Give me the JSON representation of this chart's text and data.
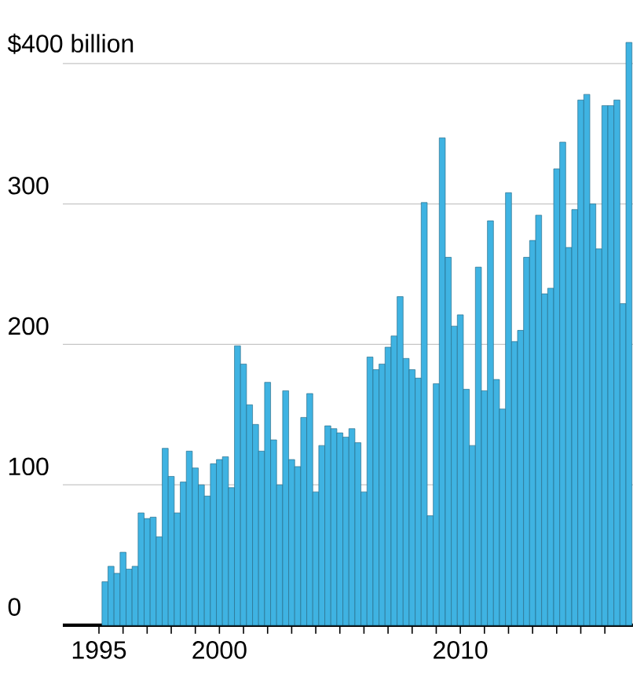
{
  "chart_data": {
    "type": "bar",
    "x": [
      "1995-04",
      "1995-07",
      "1995-10",
      "1996-01",
      "1996-04",
      "1996-07",
      "1996-10",
      "1997-01",
      "1997-04",
      "1997-07",
      "1997-10",
      "1998-01",
      "1998-04",
      "1998-07",
      "1998-10",
      "1999-01",
      "1999-04",
      "1999-07",
      "1999-10",
      "2000-01",
      "2000-04",
      "2000-07",
      "2000-10",
      "2001-01",
      "2001-04",
      "2001-07",
      "2001-10",
      "2002-01",
      "2002-04",
      "2002-07",
      "2002-10",
      "2003-01",
      "2003-04",
      "2003-07",
      "2003-10",
      "2004-01",
      "2004-04",
      "2004-07",
      "2004-10",
      "2005-01",
      "2005-04",
      "2005-07",
      "2005-10",
      "2006-01",
      "2006-04",
      "2006-07",
      "2006-10",
      "2007-01",
      "2007-04",
      "2007-07",
      "2007-10",
      "2008-01",
      "2008-04",
      "2008-07",
      "2008-10",
      "2009-01",
      "2009-04",
      "2009-07",
      "2009-10",
      "2010-01",
      "2010-04",
      "2010-07",
      "2010-10",
      "2011-01",
      "2011-04",
      "2011-07",
      "2011-10",
      "2012-01",
      "2012-04",
      "2012-07",
      "2012-10",
      "2013-01",
      "2013-04",
      "2013-07",
      "2013-10",
      "2014-01",
      "2014-04",
      "2014-07",
      "2014-10",
      "2015-01",
      "2015-04",
      "2015-07",
      "2015-10",
      "2016-01",
      "2016-04",
      "2016-07",
      "2016-10",
      "2017-01"
    ],
    "values": [
      31,
      42,
      37,
      52,
      40,
      42,
      80,
      76,
      77,
      63,
      126,
      106,
      80,
      102,
      124,
      112,
      100,
      92,
      115,
      118,
      120,
      98,
      199,
      186,
      157,
      143,
      124,
      173,
      132,
      100,
      167,
      118,
      113,
      148,
      165,
      95,
      128,
      142,
      140,
      137,
      134,
      140,
      130,
      95,
      191,
      182,
      186,
      198,
      206,
      234,
      190,
      182,
      176,
      301,
      78,
      172,
      347,
      262,
      213,
      221,
      168,
      128,
      255,
      167,
      288,
      175,
      154,
      308,
      202,
      210,
      262,
      274,
      292,
      236,
      240,
      325,
      344,
      269,
      296,
      374,
      378,
      300,
      268,
      370,
      370,
      374,
      229,
      415
    ],
    "color": "#3fb3e2",
    "ylim": [
      0,
      415
    ],
    "yticks": [
      0,
      100,
      200,
      300,
      {
        "value": 400,
        "label": "$400 billion"
      }
    ],
    "xlim": [
      "1993-07",
      "2017-03"
    ],
    "xticks": [
      {
        "value": "1995",
        "label": "1995"
      },
      {
        "value": "1996",
        "label": null
      },
      {
        "value": "1997",
        "label": null
      },
      {
        "value": "1998",
        "label": null
      },
      {
        "value": "1999",
        "label": null
      },
      {
        "value": "2000",
        "label": "2000"
      },
      {
        "value": "2001",
        "label": null
      },
      {
        "value": "2002",
        "label": null
      },
      {
        "value": "2003",
        "label": null
      },
      {
        "value": "2004",
        "label": null
      },
      {
        "value": "2005",
        "label": null
      },
      {
        "value": "2006",
        "label": null
      },
      {
        "value": "2007",
        "label": null
      },
      {
        "value": "2008",
        "label": null
      },
      {
        "value": "2009",
        "label": null
      },
      {
        "value": "2010",
        "label": "2010"
      },
      {
        "value": "2011",
        "label": null
      },
      {
        "value": "2012",
        "label": null
      },
      {
        "value": "2013",
        "label": null
      },
      {
        "value": "2014",
        "label": null
      },
      {
        "value": "2015",
        "label": null
      },
      {
        "value": "2016",
        "label": null
      }
    ],
    "grid": "y"
  }
}
